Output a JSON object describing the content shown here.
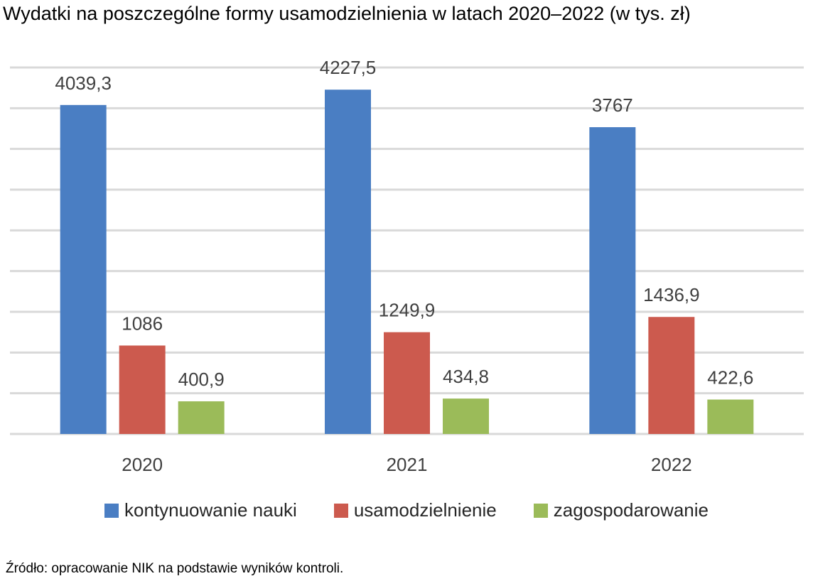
{
  "chart_data": {
    "type": "bar",
    "title": "Wydatki na poszczególne formy usamodzielnienia w latach 2020–2022 (w tys. zł)",
    "categories": [
      "2020",
      "2021",
      "2022"
    ],
    "series": [
      {
        "name": "kontynuowanie nauki",
        "color": "#4a7ec3",
        "values": [
          4039.3,
          4227.5,
          3767
        ],
        "labels": [
          "4039,3",
          "4227,5",
          "3767"
        ]
      },
      {
        "name": "usamodzielnienie",
        "color": "#cc5a4e",
        "values": [
          1086,
          1249.9,
          1436.9
        ],
        "labels": [
          "1086",
          "1249,9",
          "1436,9"
        ]
      },
      {
        "name": "zagospodarowanie",
        "color": "#9bbb59",
        "values": [
          400.9,
          434.8,
          422.6
        ],
        "labels": [
          "400,9",
          "434,8",
          "422,6"
        ]
      }
    ],
    "ylim": [
      0,
      4500
    ],
    "grid": true,
    "legend": "bottom"
  },
  "source": "Źródło: opracowanie NIK na podstawie wyników kontroli."
}
